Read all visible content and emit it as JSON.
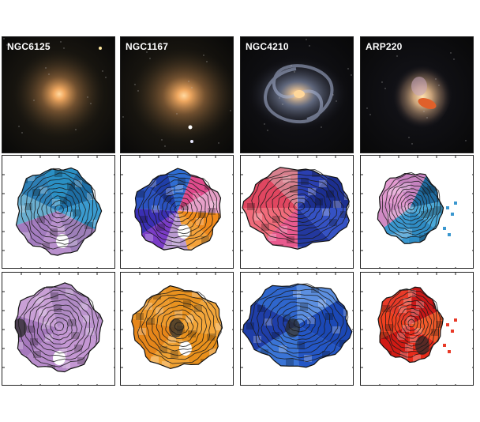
{
  "galaxies": [
    {
      "name": "NGC6125",
      "type": "elliptical"
    },
    {
      "name": "NGC1167",
      "type": "lenticular"
    },
    {
      "name": "NGC4210",
      "type": "spiral"
    },
    {
      "name": "ARP220",
      "type": "merger"
    }
  ],
  "rows": [
    "image",
    "velocity-map",
    "dispersion-map"
  ],
  "colors": {
    "background": "#ffffff",
    "frame": "#222222",
    "velocity_blue": "#1f6fd1",
    "velocity_red": "#e0303a",
    "velocity_purple": "#b884c9",
    "dispersion_orange": "#e88a1c"
  }
}
